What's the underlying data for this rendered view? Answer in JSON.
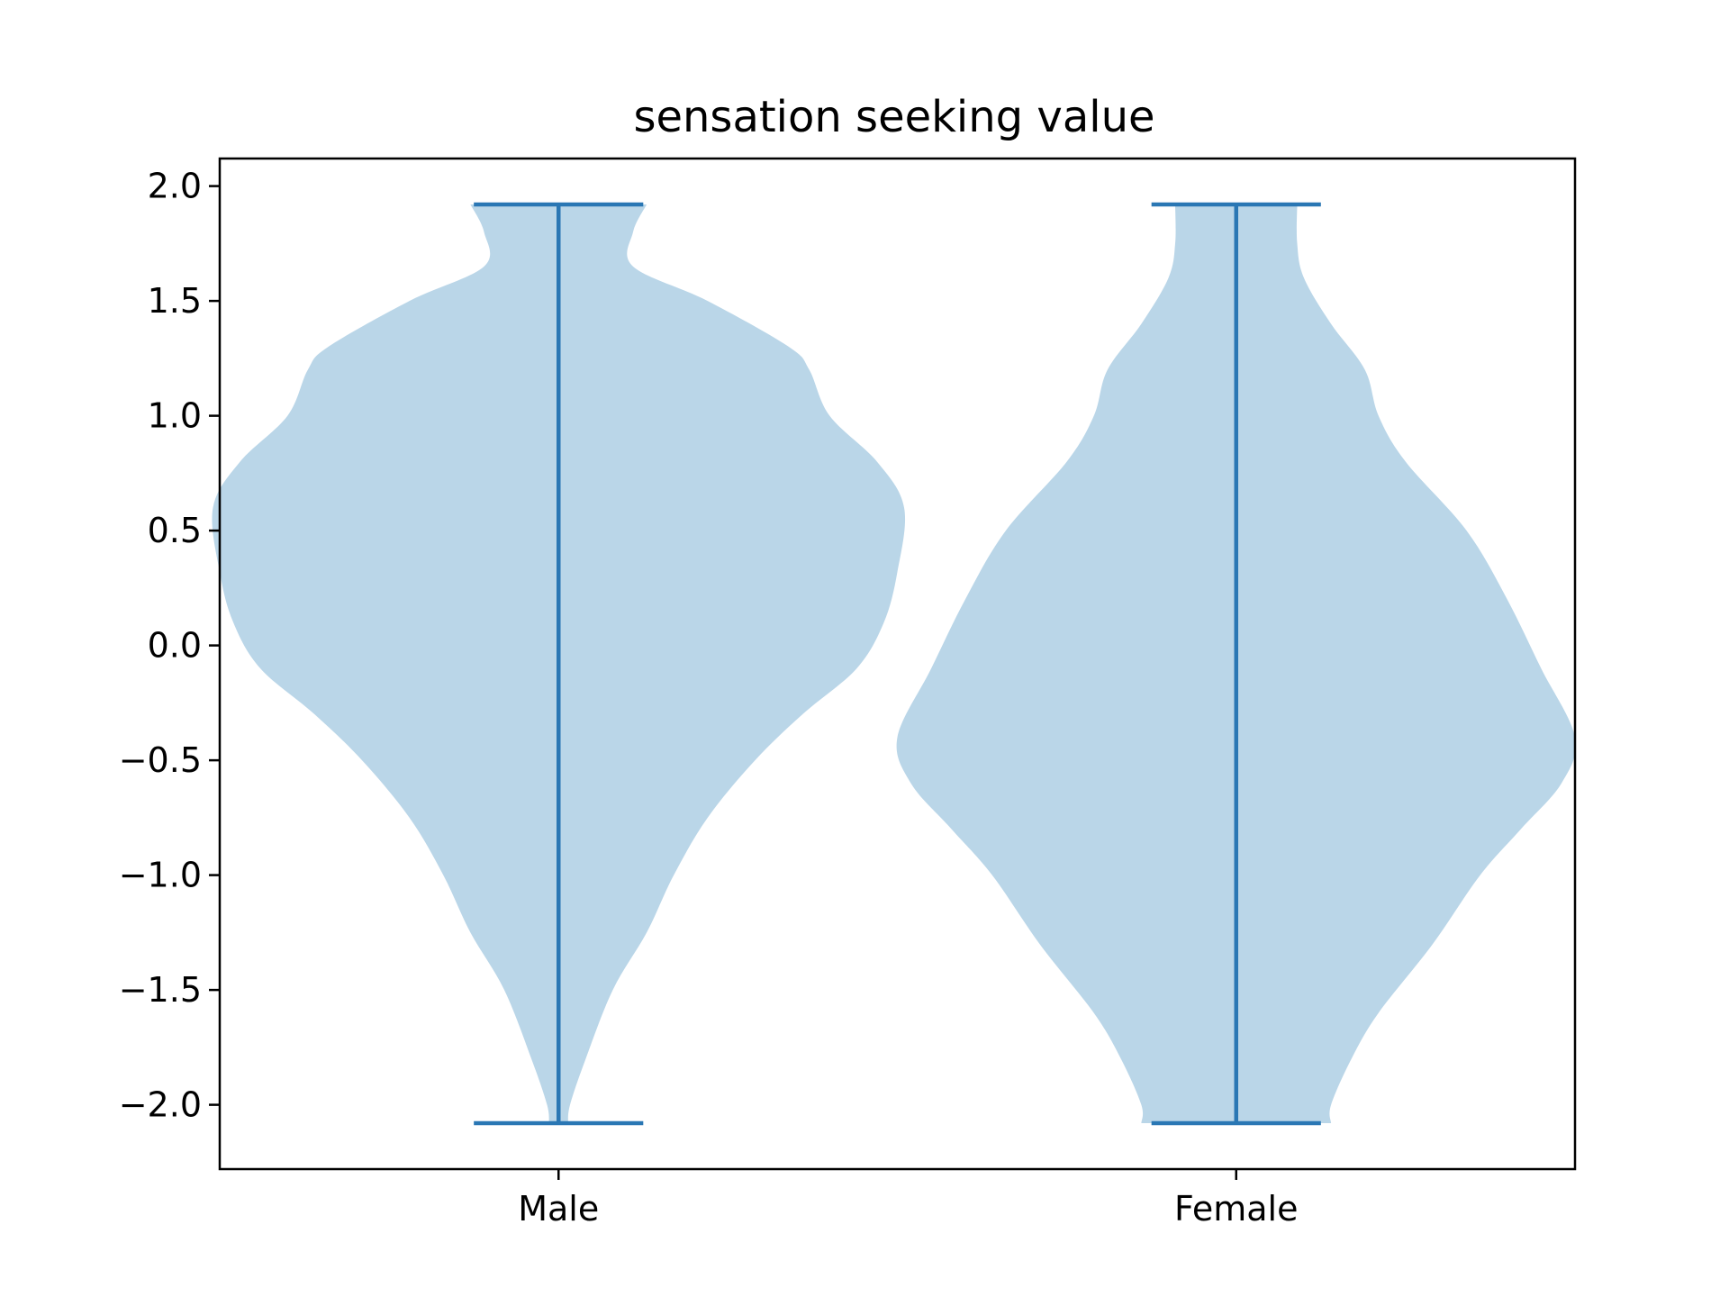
{
  "chart_data": {
    "type": "violin",
    "title": "sensation seeking value",
    "xlabel": "",
    "ylabel": "",
    "categories": [
      "Male",
      "Female"
    ],
    "ylim": [
      -2.28,
      2.12
    ],
    "yticks": [
      2.0,
      1.5,
      1.0,
      0.5,
      0.0,
      -0.5,
      -1.0,
      -1.5,
      -2.0
    ],
    "ytick_labels": [
      "2.0",
      "1.5",
      "1.0",
      "0.5",
      "0.0",
      "−0.5",
      "−1.0",
      "−1.5",
      "−2.0"
    ],
    "grid": false,
    "colors": {
      "body": "#bad6e8",
      "lines": "#2a77b4"
    },
    "series": [
      {
        "category": "Male",
        "min": -2.08,
        "max": 1.92,
        "density_profile": [
          [
            1.92,
            0.13
          ],
          [
            1.8,
            0.11
          ],
          [
            1.65,
            0.11
          ],
          [
            1.5,
            0.22
          ],
          [
            1.3,
            0.34
          ],
          [
            1.2,
            0.37
          ],
          [
            1.0,
            0.4
          ],
          [
            0.8,
            0.47
          ],
          [
            0.6,
            0.51
          ],
          [
            0.32,
            0.5
          ],
          [
            0.1,
            0.48
          ],
          [
            -0.1,
            0.44
          ],
          [
            -0.3,
            0.36
          ],
          [
            -0.5,
            0.29
          ],
          [
            -0.75,
            0.22
          ],
          [
            -1.0,
            0.17
          ],
          [
            -1.25,
            0.13
          ],
          [
            -1.5,
            0.08
          ],
          [
            -1.8,
            0.04
          ],
          [
            -2.0,
            0.017
          ],
          [
            -2.08,
            0.014
          ]
        ]
      },
      {
        "category": "Female",
        "min": -2.08,
        "max": 1.92,
        "density_profile": [
          [
            1.92,
            0.09
          ],
          [
            1.75,
            0.09
          ],
          [
            1.6,
            0.1
          ],
          [
            1.4,
            0.14
          ],
          [
            1.2,
            0.19
          ],
          [
            1.0,
            0.21
          ],
          [
            0.8,
            0.25
          ],
          [
            0.5,
            0.34
          ],
          [
            0.2,
            0.4
          ],
          [
            -0.1,
            0.45
          ],
          [
            -0.4,
            0.5
          ],
          [
            -0.6,
            0.48
          ],
          [
            -0.8,
            0.42
          ],
          [
            -1.0,
            0.36
          ],
          [
            -1.3,
            0.29
          ],
          [
            -1.6,
            0.21
          ],
          [
            -1.8,
            0.17
          ],
          [
            -2.0,
            0.14
          ],
          [
            -2.08,
            0.14
          ]
        ]
      }
    ]
  }
}
